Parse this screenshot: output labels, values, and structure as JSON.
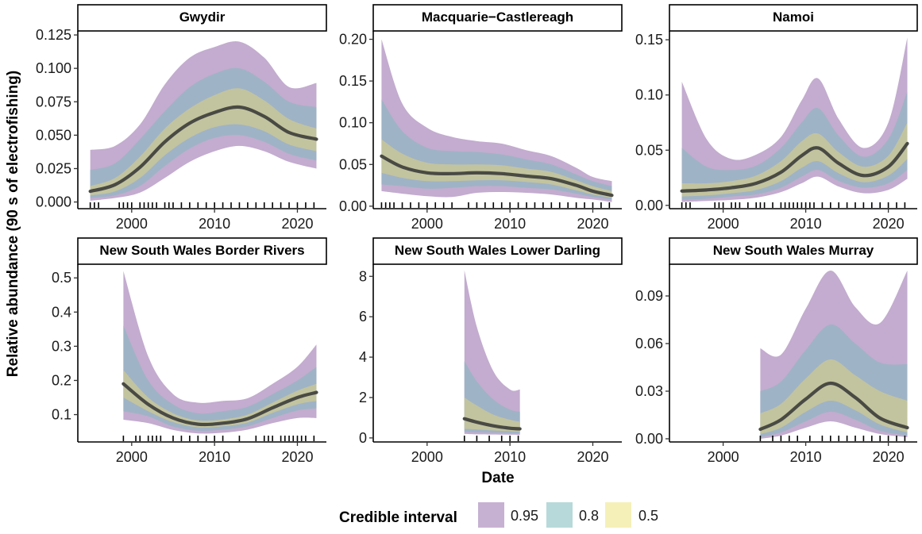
{
  "chart_data": {
    "type": "area",
    "ylabel": "Relative abundance (90 s of electrofishing)",
    "xlabel": "Date",
    "legend": {
      "title": "Credible interval",
      "position": "bottom",
      "entries": [
        {
          "label": "0.95",
          "color": "#c7b1d2"
        },
        {
          "label": "0.8",
          "color": "#b7d9d9"
        },
        {
          "label": "0.5",
          "color": "#f5f0b8"
        }
      ]
    },
    "colors": {
      "ci95": "#c3accf",
      "ci80": "#9fb3c6",
      "ci50": "#c2c49f",
      "median": "#4a4a44",
      "rug": "#000000"
    },
    "x_ticks": [
      2000,
      2010,
      2020
    ],
    "panels": [
      {
        "title": "Gwydir",
        "xlim": [
          1993.5,
          2023.5
        ],
        "ylim": [
          -0.005,
          0.128
        ],
        "yticks": [
          0,
          0.025,
          0.05,
          0.075,
          0.1,
          0.125
        ],
        "ytick_labels": [
          "0.000",
          "0.025",
          "0.050",
          "0.075",
          "0.100",
          "0.125"
        ],
        "x": [
          1995,
          1998,
          2001,
          2004,
          2007,
          2010,
          2013,
          2016,
          2019,
          2022.3
        ],
        "median": [
          0.008,
          0.013,
          0.026,
          0.045,
          0.059,
          0.067,
          0.071,
          0.064,
          0.052,
          0.047
        ],
        "ci50": [
          [
            0.005,
            0.012
          ],
          [
            0.008,
            0.018
          ],
          [
            0.018,
            0.034
          ],
          [
            0.035,
            0.055
          ],
          [
            0.048,
            0.07
          ],
          [
            0.056,
            0.08
          ],
          [
            0.058,
            0.085
          ],
          [
            0.053,
            0.076
          ],
          [
            0.043,
            0.062
          ],
          [
            0.038,
            0.055
          ]
        ],
        "ci80": [
          [
            0.003,
            0.024
          ],
          [
            0.005,
            0.029
          ],
          [
            0.012,
            0.047
          ],
          [
            0.027,
            0.068
          ],
          [
            0.04,
            0.086
          ],
          [
            0.048,
            0.096
          ],
          [
            0.05,
            0.1
          ],
          [
            0.045,
            0.09
          ],
          [
            0.036,
            0.075
          ],
          [
            0.031,
            0.071
          ]
        ],
        "ci95": [
          [
            0.001,
            0.039
          ],
          [
            0.003,
            0.042
          ],
          [
            0.007,
            0.058
          ],
          [
            0.018,
            0.088
          ],
          [
            0.03,
            0.108
          ],
          [
            0.038,
            0.116
          ],
          [
            0.042,
            0.12
          ],
          [
            0.038,
            0.108
          ],
          [
            0.03,
            0.086
          ],
          [
            0.025,
            0.089
          ]
        ],
        "rug": [
          1995,
          1995.5,
          1996,
          1998.5,
          1999,
          1999.5,
          2000,
          2001,
          2001.5,
          2002,
          2002.5,
          2003,
          2004,
          2004.5,
          2005,
          2006,
          2007,
          2008,
          2009,
          2010,
          2011,
          2012,
          2013,
          2014,
          2015,
          2016,
          2017,
          2018,
          2019,
          2020,
          2021,
          2022
        ]
      },
      {
        "title": "Macquarie−Castlereagh",
        "xlim": [
          1993.5,
          2023.5
        ],
        "ylim": [
          -0.003,
          0.21
        ],
        "yticks": [
          0,
          0.05,
          0.1,
          0.15,
          0.2
        ],
        "ytick_labels": [
          "0.00",
          "0.05",
          "0.10",
          "0.15",
          "0.20"
        ],
        "x": [
          1994.5,
          1997,
          2000,
          2003,
          2006,
          2009,
          2012,
          2015,
          2018,
          2020,
          2022.3
        ],
        "median": [
          0.06,
          0.047,
          0.04,
          0.039,
          0.04,
          0.039,
          0.036,
          0.033,
          0.025,
          0.018,
          0.013
        ],
        "ci50": [
          [
            0.04,
            0.08
          ],
          [
            0.034,
            0.063
          ],
          [
            0.03,
            0.052
          ],
          [
            0.03,
            0.05
          ],
          [
            0.031,
            0.05
          ],
          [
            0.031,
            0.049
          ],
          [
            0.029,
            0.045
          ],
          [
            0.026,
            0.041
          ],
          [
            0.019,
            0.031
          ],
          [
            0.014,
            0.024
          ],
          [
            0.01,
            0.018
          ]
        ],
        "ci80": [
          [
            0.026,
            0.128
          ],
          [
            0.024,
            0.09
          ],
          [
            0.021,
            0.07
          ],
          [
            0.022,
            0.066
          ],
          [
            0.024,
            0.065
          ],
          [
            0.024,
            0.062
          ],
          [
            0.022,
            0.056
          ],
          [
            0.02,
            0.05
          ],
          [
            0.015,
            0.038
          ],
          [
            0.011,
            0.03
          ],
          [
            0.008,
            0.024
          ]
        ],
        "ci95": [
          [
            0.018,
            0.2
          ],
          [
            0.015,
            0.123
          ],
          [
            0.012,
            0.094
          ],
          [
            0.011,
            0.083
          ],
          [
            0.016,
            0.078
          ],
          [
            0.017,
            0.075
          ],
          [
            0.016,
            0.067
          ],
          [
            0.014,
            0.06
          ],
          [
            0.01,
            0.046
          ],
          [
            0.008,
            0.035
          ],
          [
            0.005,
            0.03
          ]
        ],
        "rug": [
          1994.5,
          1995,
          1995.5,
          1996,
          1997,
          1998,
          1999,
          2000,
          2001,
          2002,
          2003,
          2005,
          2006,
          2007,
          2008,
          2009,
          2010,
          2011,
          2012,
          2013,
          2014,
          2015,
          2016,
          2017,
          2018,
          2019,
          2020,
          2021,
          2022
        ]
      },
      {
        "title": "Namoi",
        "xlim": [
          1993.5,
          2023.5
        ],
        "ylim": [
          -0.003,
          0.158
        ],
        "yticks": [
          0,
          0.05,
          0.1,
          0.15
        ],
        "ytick_labels": [
          "0.00",
          "0.05",
          "0.10",
          "0.15"
        ],
        "x": [
          1995,
          1998,
          2001,
          2004,
          2007,
          2009.5,
          2011.5,
          2014,
          2017,
          2020,
          2022.3
        ],
        "median": [
          0.013,
          0.014,
          0.016,
          0.02,
          0.03,
          0.045,
          0.052,
          0.038,
          0.027,
          0.035,
          0.056
        ],
        "ci50": [
          [
            0.008,
            0.02
          ],
          [
            0.009,
            0.02
          ],
          [
            0.011,
            0.022
          ],
          [
            0.014,
            0.027
          ],
          [
            0.022,
            0.04
          ],
          [
            0.034,
            0.058
          ],
          [
            0.04,
            0.065
          ],
          [
            0.029,
            0.048
          ],
          [
            0.021,
            0.035
          ],
          [
            0.027,
            0.045
          ],
          [
            0.042,
            0.075
          ]
        ],
        "ci80": [
          [
            0.005,
            0.052
          ],
          [
            0.006,
            0.035
          ],
          [
            0.008,
            0.032
          ],
          [
            0.01,
            0.036
          ],
          [
            0.016,
            0.052
          ],
          [
            0.026,
            0.075
          ],
          [
            0.032,
            0.088
          ],
          [
            0.022,
            0.063
          ],
          [
            0.016,
            0.044
          ],
          [
            0.02,
            0.06
          ],
          [
            0.032,
            0.103
          ]
        ],
        "ci95": [
          [
            0.003,
            0.112
          ],
          [
            0.004,
            0.06
          ],
          [
            0.005,
            0.042
          ],
          [
            0.007,
            0.046
          ],
          [
            0.012,
            0.062
          ],
          [
            0.02,
            0.095
          ],
          [
            0.026,
            0.115
          ],
          [
            0.017,
            0.078
          ],
          [
            0.011,
            0.052
          ],
          [
            0.014,
            0.075
          ],
          [
            0.024,
            0.152
          ]
        ],
        "rug": [
          1995,
          1995.5,
          1996,
          1999,
          1999.5,
          2000,
          2001,
          2001.5,
          2002,
          2003,
          2004,
          2004.5,
          2005,
          2006,
          2007,
          2007.5,
          2008,
          2008.5,
          2009,
          2009.5,
          2010,
          2010.5,
          2011,
          2012,
          2013,
          2014,
          2015,
          2016,
          2017,
          2018,
          2019,
          2020,
          2021,
          2022
        ]
      },
      {
        "title": "New South Wales Border Rivers",
        "xlim": [
          1993.5,
          2023.5
        ],
        "ylim": [
          0.02,
          0.54
        ],
        "yticks": [
          0.1,
          0.2,
          0.3,
          0.4,
          0.5
        ],
        "ytick_labels": [
          "0.1",
          "0.2",
          "0.3",
          "0.4",
          "0.5"
        ],
        "x": [
          1999,
          2002,
          2005,
          2008,
          2011,
          2014,
          2017,
          2020,
          2022.3
        ],
        "median": [
          0.19,
          0.13,
          0.09,
          0.072,
          0.075,
          0.088,
          0.12,
          0.15,
          0.165
        ],
        "ci50": [
          [
            0.15,
            0.23
          ],
          [
            0.11,
            0.15
          ],
          [
            0.078,
            0.104
          ],
          [
            0.063,
            0.083
          ],
          [
            0.066,
            0.086
          ],
          [
            0.077,
            0.1
          ],
          [
            0.105,
            0.135
          ],
          [
            0.13,
            0.17
          ],
          [
            0.14,
            0.19
          ]
        ],
        "ci80": [
          [
            0.11,
            0.36
          ],
          [
            0.095,
            0.2
          ],
          [
            0.065,
            0.13
          ],
          [
            0.053,
            0.104
          ],
          [
            0.056,
            0.11
          ],
          [
            0.066,
            0.123
          ],
          [
            0.09,
            0.16
          ],
          [
            0.112,
            0.2
          ],
          [
            0.118,
            0.24
          ]
        ],
        "ci95": [
          [
            0.085,
            0.52
          ],
          [
            0.075,
            0.27
          ],
          [
            0.055,
            0.16
          ],
          [
            0.045,
            0.135
          ],
          [
            0.047,
            0.14
          ],
          [
            0.056,
            0.148
          ],
          [
            0.075,
            0.19
          ],
          [
            0.09,
            0.24
          ],
          [
            0.09,
            0.305
          ]
        ],
        "rug": [
          1999,
          2000.5,
          2001,
          2002,
          2002.5,
          2003,
          2003.5,
          2005,
          2006,
          2007,
          2008,
          2009,
          2010,
          2011,
          2013,
          2015,
          2016,
          2016.5,
          2017,
          2018,
          2018.5,
          2019,
          2019.5,
          2020,
          2020.5,
          2021,
          2022
        ]
      },
      {
        "title": "New South Wales Lower Darling",
        "xlim": [
          1993.5,
          2023.5
        ],
        "ylim": [
          -0.2,
          8.6
        ],
        "yticks": [
          0,
          2,
          4,
          6,
          8
        ],
        "ytick_labels": [
          "0",
          "2",
          "4",
          "6",
          "8"
        ],
        "x": [
          2004.5,
          2006,
          2008,
          2010,
          2011.2
        ],
        "median": [
          0.95,
          0.78,
          0.6,
          0.48,
          0.45
        ],
        "ci50": [
          [
            0.45,
            2.0
          ],
          [
            0.42,
            1.6
          ],
          [
            0.37,
            1.15
          ],
          [
            0.33,
            0.9
          ],
          [
            0.3,
            0.8
          ]
        ],
        "ci80": [
          [
            0.3,
            3.8
          ],
          [
            0.28,
            2.8
          ],
          [
            0.26,
            1.9
          ],
          [
            0.24,
            1.4
          ],
          [
            0.22,
            1.3
          ]
        ],
        "ci95": [
          [
            0.2,
            8.3
          ],
          [
            0.18,
            5.5
          ],
          [
            0.17,
            3.3
          ],
          [
            0.16,
            2.4
          ],
          [
            0.15,
            2.4
          ]
        ],
        "rug": [
          2004.5,
          2006,
          2007.5,
          2009,
          2010,
          2011
        ]
      },
      {
        "title": "New South Wales Murray",
        "xlim": [
          1993.5,
          2023.5
        ],
        "ylim": [
          -0.002,
          0.11
        ],
        "yticks": [
          0,
          0.03,
          0.06,
          0.09
        ],
        "ytick_labels": [
          "0.00",
          "0.03",
          "0.06",
          "0.09"
        ],
        "x": [
          2004.5,
          2007,
          2010,
          2013,
          2016,
          2019,
          2022.3
        ],
        "median": [
          0.006,
          0.012,
          0.025,
          0.035,
          0.026,
          0.013,
          0.007
        ],
        "ci50": [
          [
            0.003,
            0.016
          ],
          [
            0.007,
            0.022
          ],
          [
            0.017,
            0.038
          ],
          [
            0.024,
            0.05
          ],
          [
            0.018,
            0.04
          ],
          [
            0.009,
            0.03
          ],
          [
            0.004,
            0.024
          ]
        ],
        "ci80": [
          [
            0.001,
            0.03
          ],
          [
            0.004,
            0.036
          ],
          [
            0.011,
            0.056
          ],
          [
            0.017,
            0.072
          ],
          [
            0.012,
            0.06
          ],
          [
            0.005,
            0.048
          ],
          [
            0.002,
            0.047
          ]
        ],
        "ci95": [
          [
            0.0,
            0.057
          ],
          [
            0.002,
            0.053
          ],
          [
            0.007,
            0.082
          ],
          [
            0.011,
            0.106
          ],
          [
            0.007,
            0.083
          ],
          [
            0.003,
            0.073
          ],
          [
            0.001,
            0.106
          ]
        ],
        "rug": [
          2004.5,
          2006,
          2007,
          2008,
          2009,
          2010.5,
          2012,
          2013,
          2014,
          2015,
          2016,
          2017,
          2018,
          2019,
          2020,
          2021,
          2022
        ]
      }
    ]
  }
}
